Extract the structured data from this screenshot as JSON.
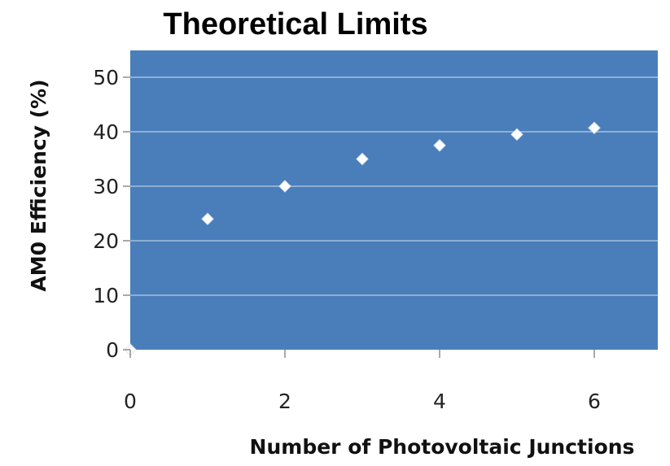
{
  "chart_data": {
    "type": "scatter",
    "title": "Theoretical Limits",
    "xlabel": "Number of Photovoltaic Junctions",
    "ylabel": "AM0 Efficiency (%)",
    "xlim": [
      0,
      7
    ],
    "ylim": [
      0,
      50
    ],
    "x_ticks": [
      "0",
      "2",
      "4",
      "6"
    ],
    "y_ticks": [
      "0",
      "10",
      "20",
      "30",
      "40",
      "50"
    ],
    "grid": true,
    "series": [
      {
        "points": [
          {
            "x": 0,
            "y": 0
          },
          {
            "x": 1,
            "y": 24
          },
          {
            "x": 2,
            "y": 30
          },
          {
            "x": 3,
            "y": 35
          },
          {
            "x": 4,
            "y": 37.5
          },
          {
            "x": 5,
            "y": 39.5
          },
          {
            "x": 6,
            "y": 40.7
          }
        ]
      }
    ],
    "colors": {
      "plot_background": "#4a7ebb",
      "marker": "#ffffff",
      "gridline": "#a6bfdd"
    }
  }
}
